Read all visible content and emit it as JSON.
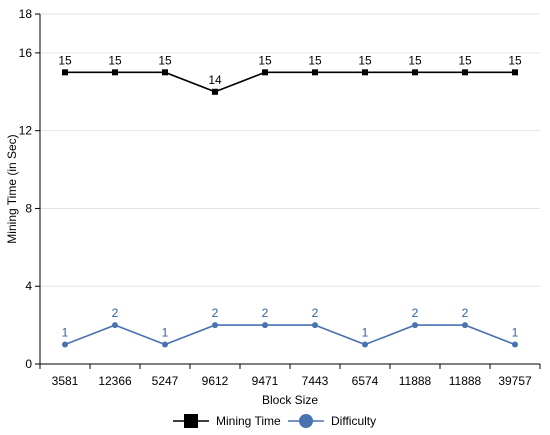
{
  "chart_data": {
    "type": "line",
    "title": "",
    "xlabel": "Block Size",
    "ylabel": "Mining Time (in Sec)",
    "categories": [
      "3581",
      "12366",
      "5247",
      "9612",
      "9471",
      "7443",
      "6574",
      "11888",
      "11888",
      "39757"
    ],
    "ylim": [
      0,
      18
    ],
    "yticks": [
      "0",
      "4",
      "8",
      "12",
      "16",
      "18"
    ],
    "grid": true,
    "legend": "bottom-center",
    "series": [
      {
        "name": "Mining Time",
        "values": [
          15,
          15,
          15,
          14,
          15,
          15,
          15,
          15,
          15,
          15
        ],
        "labels": [
          "15",
          "15",
          "15",
          "14",
          "15",
          "15",
          "15",
          "15",
          "15",
          "15"
        ],
        "color": "#000000",
        "marker": "square",
        "label_color": "#000000"
      },
      {
        "name": "Difficulty",
        "values": [
          1,
          2,
          1,
          2,
          2,
          2,
          1,
          2,
          2,
          1
        ],
        "labels": [
          "1",
          "2",
          "1",
          "2",
          "2",
          "2",
          "1",
          "2",
          "2",
          "1"
        ],
        "color": "#4a72b0",
        "marker": "circle",
        "label_color": "#2e5fa8"
      }
    ]
  }
}
